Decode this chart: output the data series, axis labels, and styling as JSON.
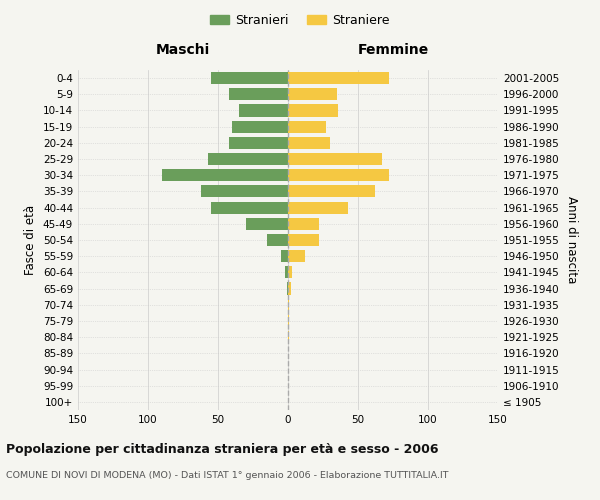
{
  "age_groups": [
    "100+",
    "95-99",
    "90-94",
    "85-89",
    "80-84",
    "75-79",
    "70-74",
    "65-69",
    "60-64",
    "55-59",
    "50-54",
    "45-49",
    "40-44",
    "35-39",
    "30-34",
    "25-29",
    "20-24",
    "15-19",
    "10-14",
    "5-9",
    "0-4"
  ],
  "birth_years": [
    "≤ 1905",
    "1906-1910",
    "1911-1915",
    "1916-1920",
    "1921-1925",
    "1926-1930",
    "1931-1935",
    "1936-1940",
    "1941-1945",
    "1946-1950",
    "1951-1955",
    "1956-1960",
    "1961-1965",
    "1966-1970",
    "1971-1975",
    "1976-1980",
    "1981-1985",
    "1986-1990",
    "1991-1995",
    "1996-2000",
    "2001-2005"
  ],
  "maschi": [
    0,
    0,
    0,
    0,
    0,
    0,
    0,
    1,
    2,
    5,
    15,
    30,
    55,
    62,
    90,
    57,
    42,
    40,
    35,
    42,
    55
  ],
  "femmine": [
    0,
    0,
    0,
    0,
    1,
    1,
    1,
    2,
    3,
    12,
    22,
    22,
    43,
    62,
    72,
    67,
    30,
    27,
    36,
    35,
    72
  ],
  "maschi_color": "#6a9e5b",
  "femmine_color": "#f5c842",
  "background_color": "#f5f5f0",
  "grid_color": "#cccccc",
  "title": "Popolazione per cittadinanza straniera per età e sesso - 2006",
  "subtitle": "COMUNE DI NOVI DI MODENA (MO) - Dati ISTAT 1° gennaio 2006 - Elaborazione TUTTITALIA.IT",
  "ylabel_left": "Fasce di età",
  "ylabel_right": "Anni di nascita",
  "xlabel_left": "Maschi",
  "xlabel_right": "Femmine",
  "legend_maschi": "Stranieri",
  "legend_femmine": "Straniere",
  "xlim": 150
}
